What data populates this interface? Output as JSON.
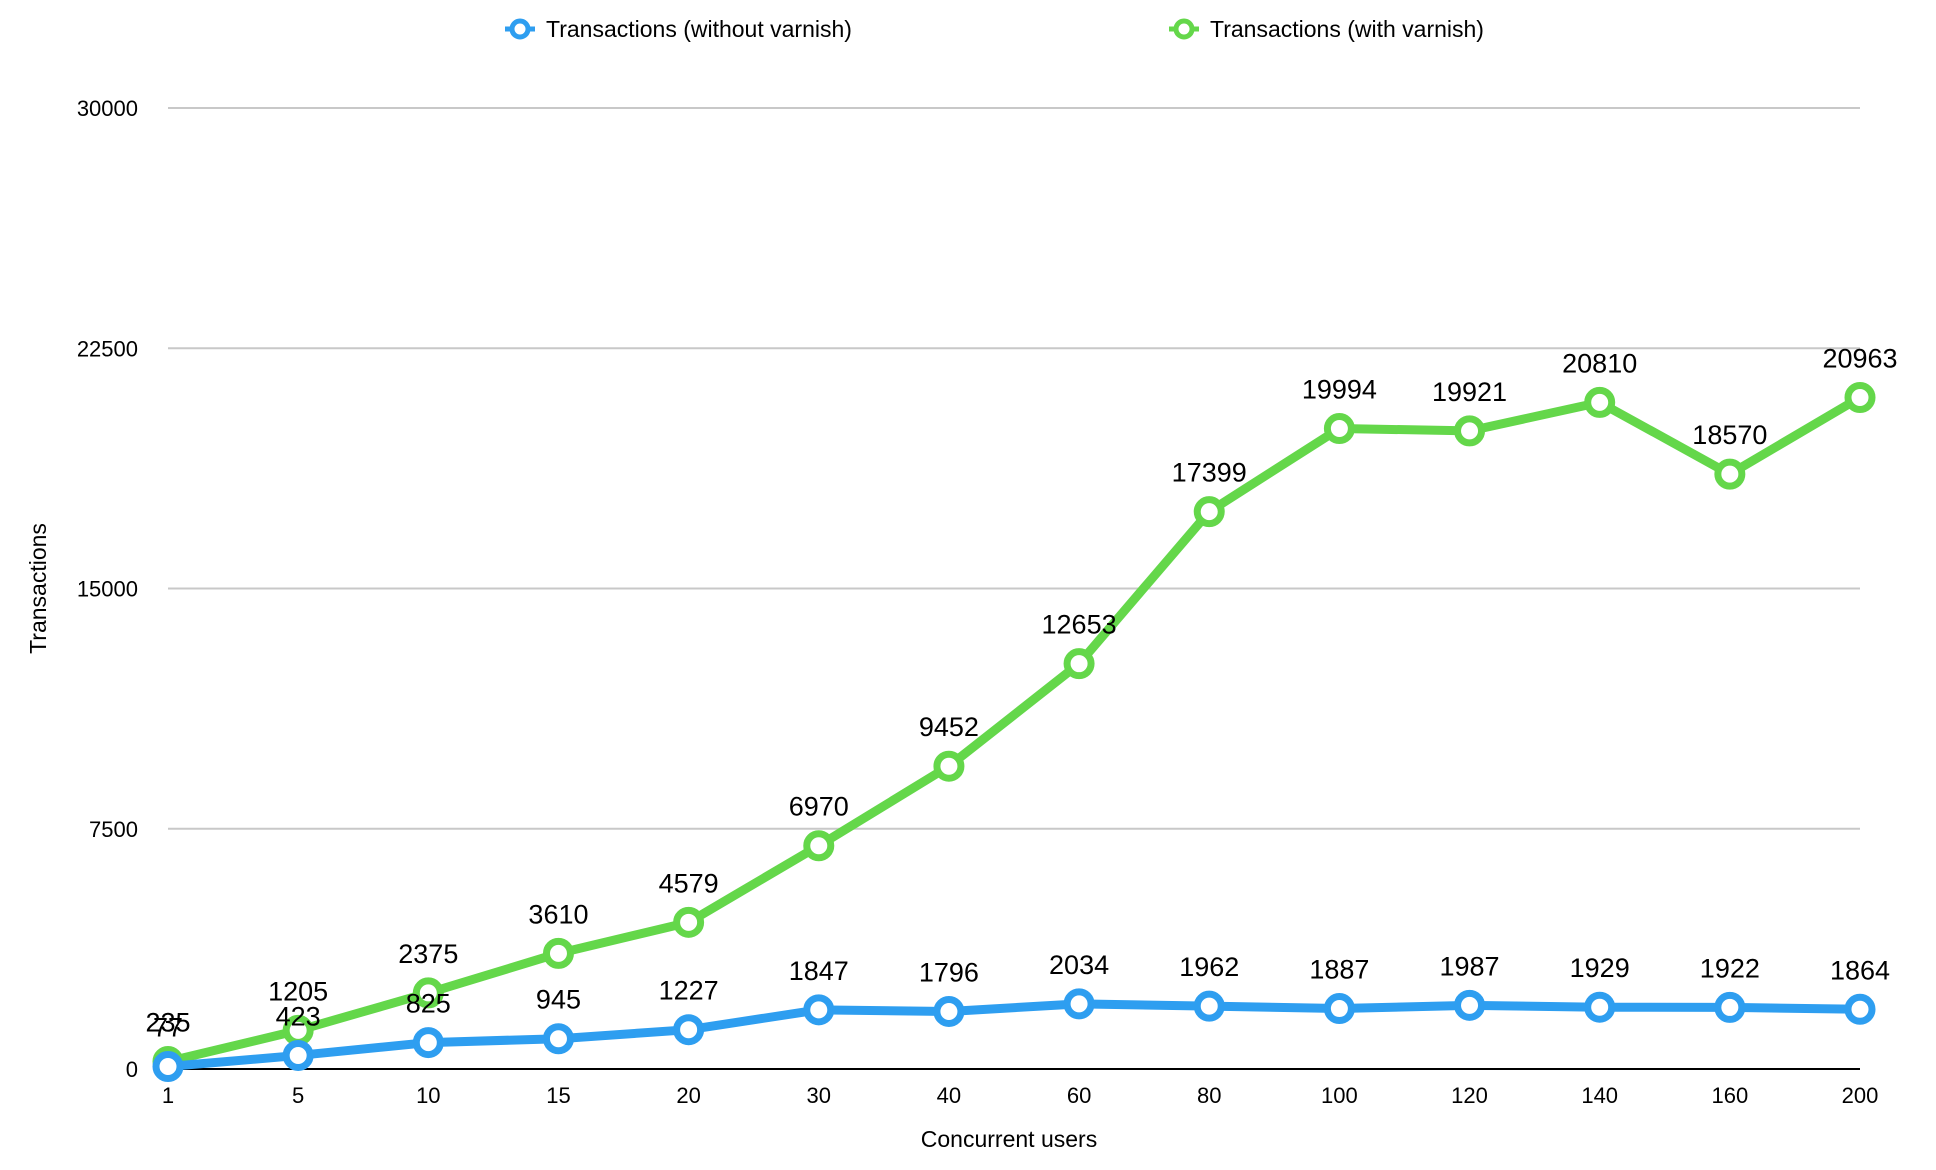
{
  "chart_data": {
    "type": "line",
    "categories": [
      "1",
      "5",
      "10",
      "15",
      "20",
      "30",
      "40",
      "60",
      "80",
      "100",
      "120",
      "140",
      "160",
      "200"
    ],
    "series": [
      {
        "name": "Transactions (without varnish)",
        "color": "#2e9ef0",
        "values": [
          77,
          423,
          825,
          945,
          1227,
          1847,
          1796,
          2034,
          1962,
          1887,
          1987,
          1929,
          1922,
          1864
        ]
      },
      {
        "name": "Transactions (with varnish)",
        "color": "#64d74a",
        "values": [
          235,
          1205,
          2375,
          3610,
          4579,
          6970,
          9452,
          12653,
          17399,
          19994,
          19921,
          20810,
          18570,
          20963
        ]
      }
    ],
    "yticks": [
      "0",
      "7500",
      "15000",
      "22500",
      "30000"
    ],
    "ylim": [
      0,
      30000
    ],
    "xlabel": "Concurrent users",
    "ylabel": "Transactions",
    "grid": true,
    "legend_position": "top-center",
    "data_labels": true
  }
}
